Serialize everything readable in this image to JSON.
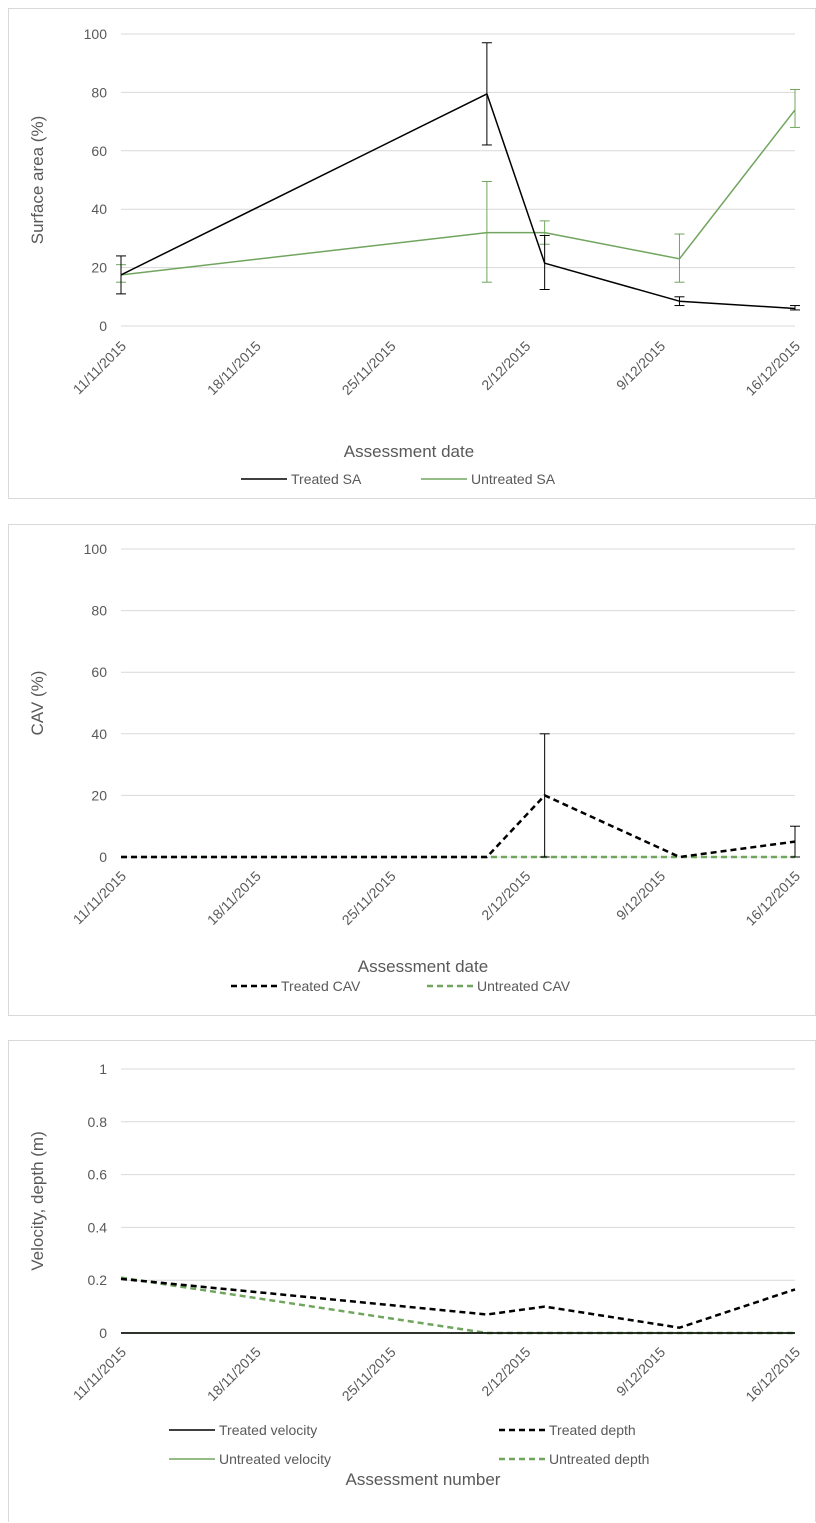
{
  "chart_data": [
    {
      "id": "sa",
      "type": "line",
      "xlabel": "Assessment date",
      "ylabel": "Surface area (%)",
      "ylim": [
        0,
        100
      ],
      "yticks": [
        "0",
        "20",
        "40",
        "60",
        "80",
        "100"
      ],
      "ytick_values": [
        0,
        20,
        40,
        60,
        80,
        100
      ],
      "xlim": [
        "2015-11-11",
        "2015-12-16"
      ],
      "xticks": [
        "11/11/2015",
        "18/11/2015",
        "25/11/2015",
        "2/12/2015",
        "9/12/2015",
        "16/12/2015"
      ],
      "xtick_dates": [
        "2015-11-11",
        "2015-11-18",
        "2015-11-25",
        "2015-12-02",
        "2015-12-09",
        "2015-12-16"
      ],
      "grid": true,
      "legend_position": "bottom",
      "series": [
        {
          "name": "Treated SA",
          "color": "#000000",
          "dash": "solid",
          "x": [
            "2015-11-11",
            "2015-11-30",
            "2015-12-03",
            "2015-12-10",
            "2015-12-16"
          ],
          "y": [
            17.5,
            79.5,
            21.5,
            8.5,
            6
          ],
          "err_low": [
            11,
            62,
            12.5,
            7,
            5.5
          ],
          "err_high": [
            24,
            97,
            31,
            10,
            7
          ]
        },
        {
          "name": "Untreated SA",
          "color": "#70a55e",
          "dash": "solid",
          "x": [
            "2015-11-11",
            "2015-11-30",
            "2015-12-03",
            "2015-12-10",
            "2015-12-16"
          ],
          "y": [
            17.5,
            32,
            32,
            23,
            74
          ],
          "err_low": [
            15,
            15,
            28,
            15,
            68
          ],
          "err_high": [
            21,
            49.5,
            36,
            31.5,
            81
          ]
        }
      ]
    },
    {
      "id": "cav",
      "type": "line",
      "xlabel": "Assessment date",
      "ylabel": "CAV (%)",
      "ylim": [
        0,
        100
      ],
      "yticks": [
        "0",
        "20",
        "40",
        "60",
        "80",
        "100"
      ],
      "ytick_values": [
        0,
        20,
        40,
        60,
        80,
        100
      ],
      "xlim": [
        "2015-11-11",
        "2015-12-16"
      ],
      "xticks": [
        "11/11/2015",
        "18/11/2015",
        "25/11/2015",
        "2/12/2015",
        "9/12/2015",
        "16/12/2015"
      ],
      "xtick_dates": [
        "2015-11-11",
        "2015-11-18",
        "2015-11-25",
        "2015-12-02",
        "2015-12-09",
        "2015-12-16"
      ],
      "grid": true,
      "legend_position": "bottom",
      "series": [
        {
          "name": "Treated CAV",
          "color": "#000000",
          "dash": "dashed",
          "x": [
            "2015-11-11",
            "2015-11-30",
            "2015-12-03",
            "2015-12-10",
            "2015-12-16"
          ],
          "y": [
            0,
            0,
            20,
            0,
            5
          ],
          "err_low": [
            0,
            0,
            0,
            0,
            0
          ],
          "err_high": [
            0,
            0,
            40,
            0,
            10
          ]
        },
        {
          "name": "Untreated CAV",
          "color": "#70a55e",
          "dash": "dashed",
          "x": [
            "2015-11-11",
            "2015-11-30",
            "2015-12-03",
            "2015-12-10",
            "2015-12-16"
          ],
          "y": [
            0,
            0,
            0,
            0,
            0
          ]
        }
      ]
    },
    {
      "id": "vel",
      "type": "line",
      "xlabel": "Assessment number",
      "ylabel": "Velocity, depth (m)",
      "ylim": [
        0,
        1
      ],
      "yticks": [
        "0",
        "0.2",
        "0.4",
        "0.6",
        "0.8",
        "1"
      ],
      "ytick_values": [
        0,
        0.2,
        0.4,
        0.6,
        0.8,
        1
      ],
      "xlim": [
        "2015-11-11",
        "2015-12-16"
      ],
      "xticks": [
        "11/11/2015",
        "18/11/2015",
        "25/11/2015",
        "2/12/2015",
        "9/12/2015",
        "16/12/2015"
      ],
      "xtick_dates": [
        "2015-11-11",
        "2015-11-18",
        "2015-11-25",
        "2015-12-02",
        "2015-12-09",
        "2015-12-16"
      ],
      "grid": true,
      "legend_position": "bottom",
      "series": [
        {
          "name": "Treated velocity",
          "color": "#000000",
          "dash": "solid",
          "x": [
            "2015-11-11",
            "2015-11-30",
            "2015-12-03",
            "2015-12-10",
            "2015-12-16"
          ],
          "y": [
            0,
            0,
            0,
            0,
            0
          ]
        },
        {
          "name": "Treated depth",
          "color": "#000000",
          "dash": "dashed",
          "x": [
            "2015-11-11",
            "2015-11-30",
            "2015-12-03",
            "2015-12-10",
            "2015-12-16"
          ],
          "y": [
            0.205,
            0.07,
            0.1,
            0.02,
            0.165
          ]
        },
        {
          "name": "Untreated velocity",
          "color": "#70a55e",
          "dash": "solid",
          "x": [
            "2015-11-11",
            "2015-11-30",
            "2015-12-03",
            "2015-12-10",
            "2015-12-16"
          ],
          "y": [
            0,
            0,
            0,
            0,
            0
          ]
        },
        {
          "name": "Untreated depth",
          "color": "#70a55e",
          "dash": "dashed",
          "x": [
            "2015-11-11",
            "2015-11-30",
            "2015-12-03",
            "2015-12-10",
            "2015-12-16"
          ],
          "y": [
            0.21,
            0,
            0,
            0,
            0
          ]
        }
      ]
    }
  ]
}
